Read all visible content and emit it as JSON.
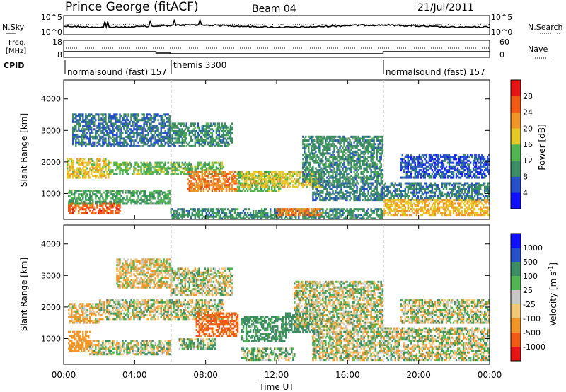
{
  "header": {
    "station": "Prince George (fitACF)",
    "beam": "Beam 04",
    "date": "21/Jul/2011"
  },
  "top_panels": {
    "nsky_label": "N.Sky",
    "nsky_ticks": [
      "10^5",
      "10^0"
    ],
    "nsearch_label": "N.Search",
    "nsearch_ticks": [
      "10^5",
      "10^0"
    ],
    "freq_label_1": "Freq.",
    "freq_label_2": "[MHz]",
    "freq_ticks": [
      "18",
      "8"
    ],
    "nave_label": "Nave",
    "nave_ticks": [
      "60",
      "0"
    ],
    "cpid_label": "CPID",
    "cpid_segments": [
      {
        "label": "normalsound (fast) 157",
        "start_hour": 0
      },
      {
        "label": "themis 3300",
        "start_hour": 6
      },
      {
        "label": "normalsound (fast) 157",
        "start_hour": 18
      }
    ]
  },
  "xaxis": {
    "label": "Time UT",
    "ticks": [
      "00:00",
      "04:00",
      "08:00",
      "12:00",
      "16:00",
      "20:00",
      "00:00"
    ]
  },
  "power_panel": {
    "ylabel": "Slant Range [km]",
    "yticks": [
      "1000",
      "2000",
      "3000",
      "4000"
    ],
    "colorbar_label": "Power [dB]",
    "colorbar_ticks": [
      "4",
      "8",
      "12",
      "16",
      "20",
      "24",
      "28"
    ],
    "colors": [
      "#1010ff",
      "#2850c8",
      "#3c8c64",
      "#50b450",
      "#e6c828",
      "#f09628",
      "#f05a14",
      "#e61414"
    ]
  },
  "velocity_panel": {
    "ylabel": "Slant Range [km]",
    "yticks": [
      "1000",
      "2000",
      "3000",
      "4000"
    ],
    "colorbar_label": "Velocity [m s",
    "colorbar_sup": "-1",
    "colorbar_close": "]",
    "colorbar_ticks": [
      "1000",
      "500",
      "100",
      "25",
      "-25",
      "-100",
      "-500",
      "-1000"
    ],
    "colors": [
      "#e61414",
      "#f05a14",
      "#f09628",
      "#f0c878",
      "#c8c8c8",
      "#50b450",
      "#3c8c64",
      "#2850c8",
      "#1010ff"
    ]
  },
  "chart_data": [
    {
      "type": "heatmap",
      "title": "",
      "xlabel": "Time UT",
      "ylabel": "Slant Range [km]",
      "xlim": [
        0,
        24
      ],
      "ylim": [
        180,
        4600
      ],
      "colorbar": "Power [dB]",
      "clim": [
        0,
        32
      ],
      "bands": [
        {
          "t0": 0.3,
          "t1": 3.2,
          "r0": 400,
          "r1": 700,
          "value": 26
        },
        {
          "t0": 0.3,
          "t1": 6.0,
          "r0": 700,
          "r1": 1100,
          "value": 12
        },
        {
          "t0": 0.2,
          "t1": 2.5,
          "r0": 1500,
          "r1": 2100,
          "value": 18
        },
        {
          "t0": 2.5,
          "t1": 9.0,
          "r0": 1600,
          "r1": 2000,
          "value": 14
        },
        {
          "t0": 0.5,
          "t1": 6.0,
          "r0": 2500,
          "r1": 3500,
          "value": 8
        },
        {
          "t0": 6.0,
          "t1": 9.5,
          "r0": 2500,
          "r1": 3200,
          "value": 10
        },
        {
          "t0": 7.0,
          "t1": 9.8,
          "r0": 1100,
          "r1": 1700,
          "value": 24
        },
        {
          "t0": 9.8,
          "t1": 12.2,
          "r0": 1100,
          "r1": 1700,
          "value": 14
        },
        {
          "t0": 10.0,
          "t1": 14.5,
          "r0": 1200,
          "r1": 1700,
          "value": 18
        },
        {
          "t0": 6.0,
          "t1": 18.0,
          "r0": 200,
          "r1": 500,
          "value": 10
        },
        {
          "t0": 12.0,
          "t1": 14.5,
          "r0": 300,
          "r1": 500,
          "value": 24
        },
        {
          "t0": 13.5,
          "t1": 18.0,
          "r0": 1400,
          "r1": 2800,
          "value": 10
        },
        {
          "t0": 14.0,
          "t1": 24.0,
          "r0": 800,
          "r1": 1300,
          "value": 9
        },
        {
          "t0": 18.0,
          "t1": 24.0,
          "r0": 350,
          "r1": 800,
          "value": 20
        },
        {
          "t0": 19.0,
          "t1": 24.0,
          "r0": 1500,
          "r1": 2200,
          "value": 6
        }
      ]
    },
    {
      "type": "heatmap",
      "title": "",
      "xlabel": "Time UT",
      "ylabel": "Slant Range [km]",
      "xlim": [
        0,
        24
      ],
      "ylim": [
        180,
        4600
      ],
      "colorbar": "Velocity [m s-1]",
      "clim": [
        -1000,
        1000
      ],
      "bands": [
        {
          "t0": 0.3,
          "t1": 1.5,
          "r0": 600,
          "r1": 1200,
          "value": -300
        },
        {
          "t0": 0.3,
          "t1": 2.0,
          "r0": 1500,
          "r1": 2100,
          "value": -100
        },
        {
          "t0": 1.5,
          "t1": 6.0,
          "r0": 500,
          "r1": 900,
          "value": 0
        },
        {
          "t0": 2.0,
          "t1": 9.0,
          "r0": 1600,
          "r1": 2200,
          "value": 0
        },
        {
          "t0": 3.0,
          "t1": 6.0,
          "r0": 2600,
          "r1": 3500,
          "value": -80
        },
        {
          "t0": 6.0,
          "t1": 9.5,
          "r0": 2400,
          "r1": 3200,
          "value": 0
        },
        {
          "t0": 7.5,
          "t1": 9.8,
          "r0": 1100,
          "r1": 1800,
          "value": -600
        },
        {
          "t0": 6.5,
          "t1": 8.5,
          "r0": 700,
          "r1": 1000,
          "value": 60
        },
        {
          "t0": 10.0,
          "t1": 12.5,
          "r0": 900,
          "r1": 1700,
          "value": 200
        },
        {
          "t0": 10.0,
          "t1": 13.0,
          "r0": 300,
          "r1": 700,
          "value": 60
        },
        {
          "t0": 12.5,
          "t1": 14.5,
          "r0": 1200,
          "r1": 1800,
          "value": 300
        },
        {
          "t0": 13.0,
          "t1": 18.0,
          "r0": 1400,
          "r1": 2800,
          "value": 0
        },
        {
          "t0": 14.0,
          "t1": 24.0,
          "r0": 300,
          "r1": 1300,
          "value": 0
        },
        {
          "t0": 19.0,
          "t1": 24.0,
          "r0": 1500,
          "r1": 2200,
          "value": 0
        }
      ]
    }
  ]
}
